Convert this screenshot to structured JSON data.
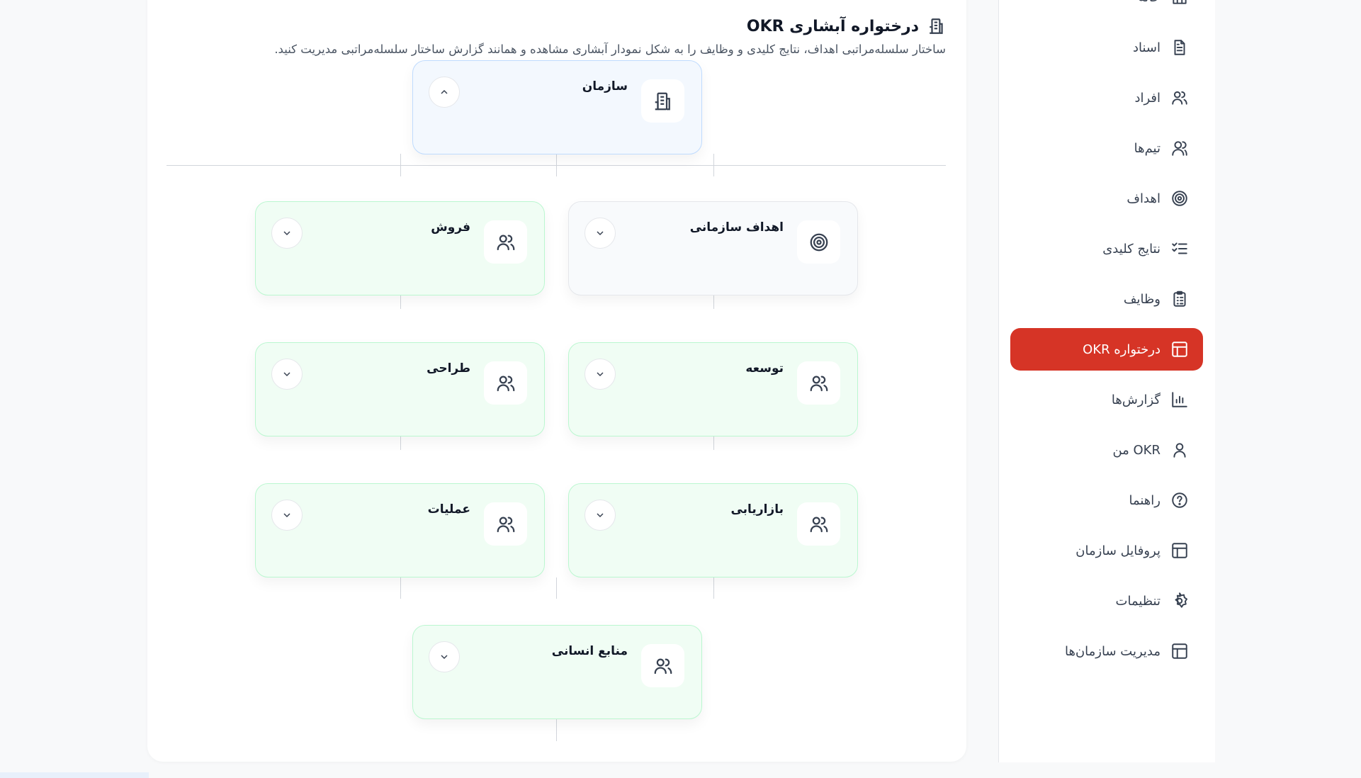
{
  "header": {
    "title": "درختواره آبشاری OKR",
    "subtitle": "ساختار سلسله‌مراتبی اهداف، نتایج کلیدی و وظایف را به شکل نمودار آبشاری مشاهده و همانند گزارش ساختار سلسله‌مراتبی مدیریت کنید."
  },
  "tree": {
    "root": {
      "label": "سازمان",
      "icon": "building-icon",
      "expanded": true
    },
    "nodes": [
      {
        "label": "اهداف سازمانی",
        "icon": "target-icon"
      },
      {
        "label": "فروش",
        "icon": "users-icon"
      },
      {
        "label": "توسعه",
        "icon": "users-icon"
      },
      {
        "label": "طراحی",
        "icon": "users-icon"
      },
      {
        "label": "بازاریابی",
        "icon": "users-icon"
      },
      {
        "label": "عملیات",
        "icon": "users-icon"
      },
      {
        "label": "منابع انسانی",
        "icon": "users-icon"
      }
    ]
  },
  "sidebar": {
    "items": [
      {
        "label": "خانه",
        "icon": "home-icon"
      },
      {
        "label": "اسناد",
        "icon": "document-icon"
      },
      {
        "label": "افراد",
        "icon": "users-icon"
      },
      {
        "label": "تیم‌ها",
        "icon": "team-icon"
      },
      {
        "label": "اهداف",
        "icon": "target-icon"
      },
      {
        "label": "نتایج کلیدی",
        "icon": "checklist-icon"
      },
      {
        "label": "وظایف",
        "icon": "clipboard-icon"
      },
      {
        "label": "درختواره OKR",
        "icon": "layout-icon",
        "active": true
      },
      {
        "label": "گزارش‌ها",
        "icon": "bar-chart-icon"
      },
      {
        "label": "OKR من",
        "icon": "user-icon"
      },
      {
        "label": "راهنما",
        "icon": "help-icon"
      },
      {
        "label": "پروفایل سازمان",
        "icon": "layout-icon"
      },
      {
        "label": "تنظیمات",
        "icon": "gear-icon"
      },
      {
        "label": "مدیریت سازمان‌ها",
        "icon": "layout-icon"
      }
    ]
  },
  "colors": {
    "accent": "#d63426",
    "team_card": "#f0fdf4",
    "root_card": "#f3f8fe"
  }
}
